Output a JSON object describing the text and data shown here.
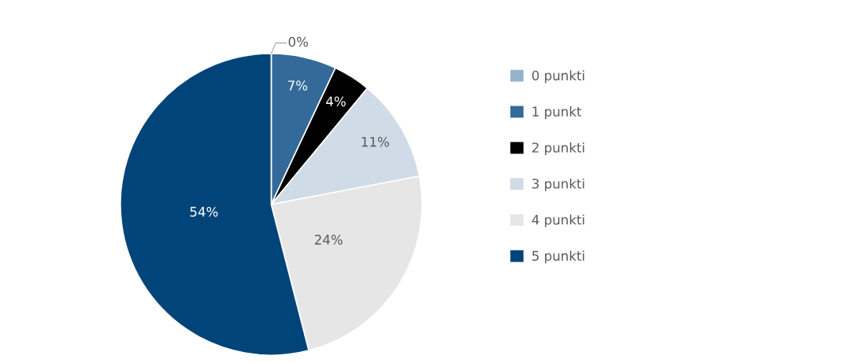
{
  "chart_data": {
    "type": "pie",
    "categories": [
      "0 punkti",
      "1 punkt",
      "2 punkti",
      "3 punkti",
      "4 punkti",
      "5 punkti"
    ],
    "values": [
      0,
      7,
      4,
      11,
      24,
      54
    ],
    "value_labels": [
      "0%",
      "7%",
      "4%",
      "11%",
      "24%",
      "54%"
    ],
    "colors": [
      "#97b3cc",
      "#336a99",
      "#000000",
      "#cfdbe6",
      "#e6e6e6",
      "#00447a"
    ],
    "legend": "right"
  }
}
